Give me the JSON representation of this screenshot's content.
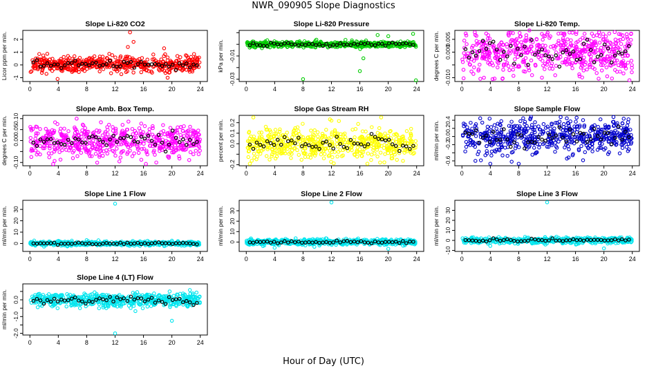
{
  "title": "NWR_090905  Slope Diagnostics",
  "xlabel": "Hour of Day (UTC)",
  "overlay_color": "#000000",
  "chart_data": [
    {
      "type": "scatter",
      "title": "Slope Li-820 CO2",
      "ylabel": "Licor ppm per min.",
      "color": "#ff0000",
      "xlim": [
        -1,
        25
      ],
      "xticks": [
        0,
        4,
        8,
        12,
        16,
        20,
        24
      ],
      "ylim": [
        -1.3,
        2.7
      ],
      "yticks": [
        -1,
        0,
        1,
        2
      ],
      "ytick_labels": [
        "-1",
        "0",
        "1",
        "2"
      ],
      "series": [
        {
          "name": "",
          "baseline": 0.05,
          "spread": 0.3,
          "outliers": [
            [
              14.1,
              2.55
            ],
            [
              13.8,
              1.4
            ],
            [
              18.9,
              1.3
            ],
            [
              3.9,
              -1.1
            ],
            [
              19.4,
              -1.0
            ],
            [
              14.6,
              1.8
            ]
          ]
        }
      ]
    },
    {
      "type": "scatter",
      "title": "Slope Li-820 Pressure",
      "ylabel": "kPa per min.",
      "color": "#00cc00",
      "xlim": [
        -1,
        25
      ],
      "xticks": [
        0,
        4,
        8,
        12,
        16,
        20,
        24
      ],
      "ylim": [
        -0.032,
        0.012
      ],
      "yticks": [
        -0.03,
        -0.02,
        -0.01,
        0,
        0.01
      ],
      "ytick_labels": [
        "-0.03",
        "",
        "-0.01",
        "",
        ""
      ],
      "series": [
        {
          "name": "",
          "baseline": 0.0,
          "spread": 0.0012,
          "outliers": [
            [
              16.0,
              -0.023
            ],
            [
              23.9,
              -0.031
            ],
            [
              8.0,
              -0.03
            ],
            [
              18.5,
              0.008
            ],
            [
              23.5,
              0.009
            ],
            [
              16.5,
              -0.012
            ],
            [
              20.0,
              0.007
            ]
          ]
        }
      ]
    },
    {
      "type": "scatter",
      "title": "Slope Li-820 Temp.",
      "ylabel": "degrees C per min.",
      "color": "#ff00ff",
      "xlim": [
        -1,
        25
      ],
      "xticks": [
        0,
        4,
        8,
        12,
        16,
        20,
        24
      ],
      "ylim": [
        -0.0115,
        0.0085
      ],
      "yticks": [
        -0.01,
        -0.005,
        0,
        0.005
      ],
      "ytick_labels": [
        "-0.010",
        "",
        "0.000",
        "0.005"
      ],
      "series": [
        {
          "name": "",
          "baseline": 0.0,
          "spread": 0.0042,
          "outliers": [
            [
              23.6,
              -0.011
            ],
            [
              9.5,
              0.0085
            ],
            [
              3.1,
              -0.01
            ]
          ]
        }
      ]
    },
    {
      "type": "scatter",
      "title": "Slope Amb. Box Temp.",
      "ylabel": "degrees C per min.",
      "color": "#ff00ff",
      "xlim": [
        -1,
        25
      ],
      "xticks": [
        0,
        4,
        8,
        12,
        16,
        20,
        24
      ],
      "ylim": [
        -0.115,
        0.115
      ],
      "yticks": [
        -0.1,
        -0.05,
        0,
        0.05,
        0.1
      ],
      "ytick_labels": [
        "-0.10",
        "",
        "0.00",
        "0.05",
        "0.10"
      ],
      "series": [
        {
          "name": "",
          "baseline": 0.0,
          "spread": 0.038,
          "outliers": [
            [
              0.2,
              -0.075
            ],
            [
              17.8,
              -0.1
            ],
            [
              12.6,
              -0.095
            ]
          ]
        }
      ]
    },
    {
      "type": "scatter",
      "title": "Slope Gas Stream RH",
      "ylabel": "percent per min.",
      "color": "#ffff00",
      "xlim": [
        -1,
        25
      ],
      "xticks": [
        0,
        4,
        8,
        12,
        16,
        20,
        24
      ],
      "ylim": [
        -0.21,
        0.27
      ],
      "yticks": [
        -0.2,
        -0.1,
        0,
        0.1,
        0.2
      ],
      "ytick_labels": [
        "-0.2",
        "",
        "0.0",
        "0.1",
        "0.2"
      ],
      "series": [
        {
          "name": "",
          "baseline": 0.0,
          "spread": 0.075,
          "outliers": [
            [
              1.0,
              0.25
            ],
            [
              19.0,
              0.25
            ],
            [
              12.0,
              0.22
            ],
            [
              0.5,
              -0.19
            ]
          ]
        }
      ]
    },
    {
      "type": "scatter",
      "title": "Slope Sample Flow",
      "ylabel": "ml/min per min.",
      "color": "#0000cc",
      "xlim": [
        -1,
        25
      ],
      "xticks": [
        0,
        4,
        8,
        12,
        16,
        20,
        24
      ],
      "ylim": [
        -0.72,
        0.52
      ],
      "yticks": [
        -0.6,
        -0.4,
        -0.2,
        0,
        0.2,
        0.4
      ],
      "ytick_labels": [
        "-0.6",
        "",
        "-0.2",
        "0.0",
        "0.2",
        "0.4"
      ],
      "series": [
        {
          "name": "",
          "baseline": 0.0,
          "spread": 0.2,
          "outliers": [
            [
              4.0,
              -0.67
            ],
            [
              7.0,
              -0.62
            ],
            [
              8.0,
              -0.67
            ],
            [
              1.9,
              -0.6
            ],
            [
              3.9,
              0.44
            ],
            [
              23.4,
              0.35
            ]
          ]
        }
      ]
    },
    {
      "type": "scatter",
      "title": "Slope Line 1 Flow",
      "ylabel": "ml/min per min.",
      "color": "#00e5ee",
      "xlim": [
        -1,
        25
      ],
      "xticks": [
        0,
        4,
        8,
        12,
        16,
        20,
        24
      ],
      "ylim": [
        -7,
        38
      ],
      "yticks": [
        0,
        10,
        20,
        30
      ],
      "ytick_labels": [
        "0",
        "10",
        "20",
        "30"
      ],
      "series": [
        {
          "name": "",
          "baseline": 0.0,
          "spread": 0.9,
          "outliers": [
            [
              12.0,
              35.0
            ],
            [
              8.0,
              3.0
            ],
            [
              20.0,
              2.5
            ]
          ]
        }
      ]
    },
    {
      "type": "scatter",
      "title": "Slope Line 2 Flow",
      "ylabel": "ml/min per min.",
      "color": "#00e5ee",
      "xlim": [
        -1,
        25
      ],
      "xticks": [
        0,
        4,
        8,
        12,
        16,
        20,
        24
      ],
      "ylim": [
        -9,
        40
      ],
      "yticks": [
        0,
        10,
        20,
        30
      ],
      "ytick_labels": [
        "0",
        "10",
        "20",
        "30"
      ],
      "series": [
        {
          "name": "",
          "baseline": 0.0,
          "spread": 1.3,
          "outliers": [
            [
              12.0,
              38.0
            ],
            [
              4.0,
              -5.5
            ],
            [
              20.0,
              -6.5
            ]
          ]
        }
      ]
    },
    {
      "type": "scatter",
      "title": "Slope Line 3 Flow",
      "ylabel": "ml/min per min.",
      "color": "#00e5ee",
      "xlim": [
        -1,
        25
      ],
      "xticks": [
        0,
        4,
        8,
        12,
        16,
        20,
        24
      ],
      "ylim": [
        -11,
        40
      ],
      "yticks": [
        -10,
        0,
        10,
        20,
        30
      ],
      "ytick_labels": [
        "-10",
        "0",
        "10",
        "20",
        "30"
      ],
      "series": [
        {
          "name": "",
          "baseline": 0.0,
          "spread": 1.4,
          "outliers": [
            [
              12.0,
              38.0
            ],
            [
              4.0,
              -5.5
            ],
            [
              20.0,
              -8.0
            ]
          ]
        }
      ]
    },
    {
      "type": "scatter",
      "title": "Slope Line 4 (LT) Flow",
      "ylabel": "ml/min per min.",
      "color": "#00e5ee",
      "xlim": [
        -1,
        25
      ],
      "xticks": [
        0,
        4,
        8,
        12,
        16,
        20,
        24
      ],
      "ylim": [
        -2.1,
        0.95
      ],
      "yticks": [
        -2,
        -1.5,
        -1,
        -0.5,
        0,
        0.5
      ],
      "ytick_labels": [
        "-2.0",
        "",
        "-1.0",
        "",
        "0.0",
        ""
      ],
      "series": [
        {
          "name": "",
          "baseline": 0.0,
          "spread": 0.2,
          "outliers": [
            [
              12.0,
              -2.0
            ],
            [
              20.0,
              -1.25
            ],
            [
              3.9,
              -0.5
            ],
            [
              15.9,
              -0.5
            ]
          ]
        }
      ]
    }
  ]
}
